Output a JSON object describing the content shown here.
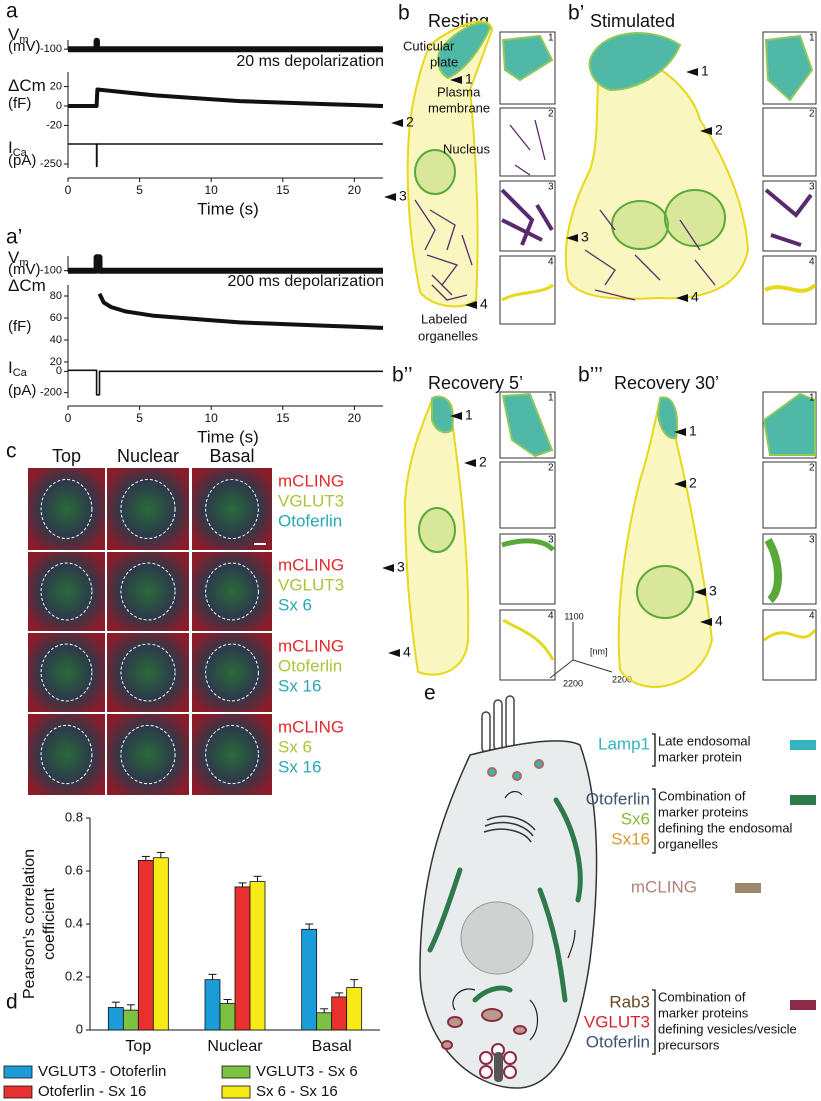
{
  "chart_data": [
    {
      "type": "trace",
      "label": "a",
      "annotation": "20 ms depolarization",
      "xlabel": "Time (s)",
      "xlim": [
        0,
        22
      ],
      "xticks": [
        0,
        5,
        10,
        15,
        20
      ],
      "rows": [
        {
          "name": "V",
          "sub": "m",
          "unit": "(mV)",
          "ylim": [
            -110,
            10
          ],
          "yticks": [
            -100
          ],
          "x": [
            0,
            2,
            2,
            2.02,
            2.02,
            22
          ],
          "values": [
            -100,
            -100,
            0,
            0,
            -100,
            -100
          ]
        },
        {
          "name": "ΔCm",
          "unit": "(fF)",
          "ylim": [
            -35,
            35
          ],
          "yticks": [
            20,
            0,
            -20
          ],
          "x": [
            0,
            2,
            2.05,
            4,
            6,
            8,
            10,
            12,
            14,
            16,
            18,
            20,
            22
          ],
          "values": [
            0,
            0,
            17,
            14,
            11,
            9,
            7,
            5,
            4,
            3,
            2,
            1,
            0
          ]
        },
        {
          "name": "I",
          "sub": "Ca",
          "unit": "(pA)",
          "ylim": [
            -300,
            50
          ],
          "yticks": [
            -250
          ],
          "x": [
            0,
            2,
            2,
            2.02,
            2.02,
            22
          ],
          "values": [
            0,
            0,
            -280,
            -280,
            0,
            0
          ]
        }
      ]
    },
    {
      "type": "trace",
      "label": "a’",
      "annotation": "200 ms depolarization",
      "xlabel": "Time (s)",
      "xlim": [
        0,
        22
      ],
      "xticks": [
        0,
        5,
        10,
        15,
        20
      ],
      "rows": [
        {
          "name": "V",
          "sub": "m",
          "unit": "(mV)",
          "ylim": [
            -110,
            10
          ],
          "yticks": [
            -100
          ],
          "x": [
            0,
            2,
            2,
            2.2,
            2.2,
            22
          ],
          "values": [
            -100,
            -100,
            0,
            0,
            -100,
            -100
          ]
        },
        {
          "name": "ΔCm",
          "unit": "(fF)",
          "ylim": [
            0,
            90
          ],
          "yticks": [
            80,
            60,
            40,
            20
          ],
          "x": [
            2.2,
            2.5,
            3,
            4,
            6,
            8,
            10,
            12,
            14,
            16,
            18,
            20,
            22
          ],
          "values": [
            82,
            74,
            70,
            66,
            62,
            60,
            58,
            56,
            55,
            54,
            53,
            52,
            51
          ]
        },
        {
          "name": "I",
          "sub": "Ca",
          "unit": "(pA)",
          "ylim": [
            -250,
            50
          ],
          "yticks": [
            0,
            -200
          ],
          "x": [
            0,
            2,
            2,
            2.2,
            2.2,
            22
          ],
          "values": [
            10,
            10,
            -220,
            -220,
            0,
            0
          ]
        }
      ]
    },
    {
      "type": "bar",
      "label": "d",
      "ylabel": [
        "Pearson’s correlation",
        "coefficient"
      ],
      "categories": [
        "Top",
        "Nuclear",
        "Basal"
      ],
      "ylim": [
        0,
        0.8
      ],
      "yticks": [
        0,
        0.2,
        0.4,
        0.6,
        0.8
      ],
      "series": [
        {
          "name": "VGLUT3 - Otoferlin",
          "color": "#1b9bd7",
          "values": [
            0.085,
            0.19,
            0.38
          ],
          "errors": [
            0.02,
            0.02,
            0.02
          ]
        },
        {
          "name": "VGLUT3 - Sx 6",
          "color": "#7cc142",
          "values": [
            0.075,
            0.1,
            0.065
          ],
          "errors": [
            0.02,
            0.015,
            0.015
          ]
        },
        {
          "name": "Otoferlin - Sx 16",
          "color": "#e8302e",
          "values": [
            0.64,
            0.54,
            0.125
          ],
          "errors": [
            0.015,
            0.015,
            0.015
          ]
        },
        {
          "name": "Sx 6 - Sx 16",
          "color": "#f6eb16",
          "values": [
            0.65,
            0.56,
            0.16
          ],
          "errors": [
            0.02,
            0.02,
            0.03
          ]
        }
      ]
    }
  ],
  "panel_b": {
    "resting": {
      "label": "b",
      "title": "Resting",
      "cuticular_plate": [
        "Cuticular",
        "plate"
      ],
      "plasma_membrane": [
        "Plasma",
        "membrane"
      ],
      "nucleus": "Nucleus",
      "labeled_organelles": [
        "Labeled",
        "organelles"
      ],
      "markers": [
        "1",
        "2",
        "3",
        "4"
      ],
      "insets": [
        "1",
        "2",
        "3",
        "4"
      ]
    },
    "stimulated": {
      "label": "b’",
      "title": "Stimulated",
      "markers": [
        "1",
        "2",
        "3",
        "4"
      ],
      "insets": [
        "1",
        "2",
        "3",
        "4"
      ]
    },
    "recovery_5": {
      "label": "b’’",
      "title": "Recovery 5’",
      "markers": [
        "1",
        "2",
        "3",
        "4"
      ],
      "insets": [
        "1",
        "2",
        "3",
        "4"
      ],
      "scale": {
        "z": "1100",
        "unit": "[nm]",
        "x": "2200",
        "y": "2200"
      }
    },
    "recovery_30": {
      "label": "b’’’",
      "title": "Recovery 30’",
      "markers": [
        "1",
        "2",
        "3",
        "4"
      ],
      "insets": [
        "1",
        "2",
        "3",
        "4"
      ]
    }
  },
  "panel_c": {
    "label": "c",
    "columns": [
      "Top",
      "Nuclear",
      "Basal"
    ],
    "rows": [
      [
        {
          "text": "mCLING",
          "color": "#e4282c"
        },
        {
          "text": "VGLUT3",
          "color": "#a9c53a"
        },
        {
          "text": "Otoferlin",
          "color": "#27a8b6"
        }
      ],
      [
        {
          "text": "mCLING",
          "color": "#e4282c"
        },
        {
          "text": "VGLUT3",
          "color": "#a9c53a"
        },
        {
          "text": "Sx 6",
          "color": "#27a8b6"
        }
      ],
      [
        {
          "text": "mCLING",
          "color": "#e4282c"
        },
        {
          "text": "Otoferlin",
          "color": "#a9c53a"
        },
        {
          "text": "Sx 16",
          "color": "#27a8b6"
        }
      ],
      [
        {
          "text": "mCLING",
          "color": "#e4282c"
        },
        {
          "text": "Sx 6",
          "color": "#a9c53a"
        },
        {
          "text": "Sx 16",
          "color": "#27a8b6"
        }
      ]
    ]
  },
  "panel_e": {
    "label": "e",
    "legend": [
      {
        "names": [
          {
            "text": "Lamp1",
            "color": "#35b3bf"
          }
        ],
        "description": [
          "Late endosomal",
          "marker protein"
        ],
        "swatch": "#35b3bf"
      },
      {
        "names": [
          {
            "text": "Otoferlin",
            "color": "#3b5273"
          },
          {
            "text": "Sx6",
            "color": "#8ab83a"
          },
          {
            "text": "Sx16",
            "color": "#d59a2c"
          }
        ],
        "description": [
          "Combination of",
          "marker proteins",
          "defining the endosomal",
          "organelles"
        ],
        "swatch": "#2f7a4c"
      },
      {
        "names": [
          {
            "text": "mCLING",
            "color": "#b17f7c"
          }
        ],
        "description": [],
        "swatch": "#9a876c"
      },
      {
        "names": [
          {
            "text": "Rab3",
            "color": "#6a4626"
          },
          {
            "text": "VGLUT3",
            "color": "#d4262c"
          },
          {
            "text": "Otoferlin",
            "color": "#3b5273"
          }
        ],
        "description": [
          "Combination of",
          "marker proteins",
          "defining vesicles/vesicle",
          "precursors"
        ],
        "swatch": "#8d2a47"
      }
    ]
  }
}
